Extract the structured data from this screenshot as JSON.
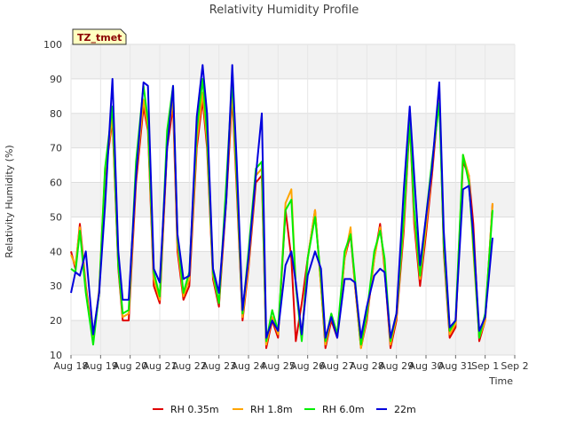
{
  "chart_data": {
    "type": "line",
    "title": "Relativity Humidity Profile",
    "xlabel": "Time",
    "ylabel": "Relativity Humidity (%)",
    "ylim": [
      10,
      100
    ],
    "yticks": [
      10,
      20,
      30,
      40,
      50,
      60,
      70,
      80,
      90,
      100
    ],
    "xlim": [
      0,
      15
    ],
    "xticks": [
      {
        "v": 0,
        "label": "Aug 18"
      },
      {
        "v": 1,
        "label": "Aug 19"
      },
      {
        "v": 2,
        "label": "Aug 20"
      },
      {
        "v": 3,
        "label": "Aug 21"
      },
      {
        "v": 4,
        "label": "Aug 22"
      },
      {
        "v": 5,
        "label": "Aug 23"
      },
      {
        "v": 6,
        "label": "Aug 24"
      },
      {
        "v": 7,
        "label": "Aug 25"
      },
      {
        "v": 8,
        "label": "Aug 26"
      },
      {
        "v": 9,
        "label": "Aug 27"
      },
      {
        "v": 10,
        "label": "Aug 28"
      },
      {
        "v": 11,
        "label": "Aug 29"
      },
      {
        "v": 12,
        "label": "Aug 30"
      },
      {
        "v": 13,
        "label": "Aug 31"
      },
      {
        "v": 14,
        "label": "Sep 1"
      },
      {
        "v": 15,
        "label": "Sep 2"
      }
    ],
    "grid": true,
    "badge": "TZ_tmet",
    "legend_position": "bottom-center",
    "x": [
      0.0,
      0.15,
      0.3,
      0.5,
      0.75,
      0.95,
      1.15,
      1.4,
      1.6,
      1.75,
      1.95,
      2.2,
      2.45,
      2.6,
      2.8,
      3.0,
      3.25,
      3.45,
      3.6,
      3.8,
      4.0,
      4.25,
      4.45,
      4.6,
      4.8,
      5.0,
      5.25,
      5.45,
      5.6,
      5.8,
      6.0,
      6.25,
      6.45,
      6.6,
      6.8,
      7.0,
      7.25,
      7.45,
      7.6,
      7.8,
      8.0,
      8.25,
      8.45,
      8.6,
      8.8,
      9.0,
      9.25,
      9.45,
      9.6,
      9.8,
      10.0,
      10.25,
      10.45,
      10.6,
      10.8,
      11.0,
      11.25,
      11.45,
      11.6,
      11.8,
      12.0,
      12.2,
      12.45,
      12.6,
      12.8,
      13.0,
      13.25,
      13.45,
      13.6,
      13.8,
      14.0,
      14.25
    ],
    "series": [
      {
        "name": "RH 0.35m",
        "color": "#e00000",
        "values": [
          40,
          35,
          48,
          30,
          14,
          28,
          62,
          78,
          35,
          20,
          20,
          60,
          82,
          75,
          30,
          25,
          70,
          82,
          40,
          26,
          30,
          70,
          84,
          70,
          32,
          24,
          55,
          85,
          58,
          20,
          35,
          60,
          62,
          12,
          20,
          15,
          52,
          38,
          14,
          25,
          38,
          52,
          30,
          12,
          20,
          15,
          38,
          45,
          30,
          12,
          20,
          38,
          48,
          35,
          12,
          20,
          46,
          78,
          48,
          30,
          45,
          62,
          86,
          40,
          15,
          18,
          66,
          62,
          48,
          14,
          20,
          54
        ]
      },
      {
        "name": "RH 1.8m",
        "color": "#ffa500",
        "values": [
          39,
          36,
          47,
          29,
          14,
          29,
          63,
          79,
          36,
          21,
          22,
          62,
          84,
          76,
          32,
          26,
          72,
          84,
          42,
          27,
          32,
          72,
          86,
          72,
          33,
          25,
          57,
          87,
          60,
          21,
          36,
          62,
          64,
          13,
          21,
          16,
          54,
          58,
          30,
          15,
          38,
          52,
          30,
          13,
          21,
          16,
          38,
          47,
          30,
          12,
          21,
          38,
          47,
          36,
          13,
          21,
          48,
          80,
          50,
          32,
          47,
          64,
          87,
          42,
          16,
          19,
          68,
          62,
          40,
          15,
          20,
          54
        ]
      },
      {
        "name": "RH 6.0m",
        "color": "#00ee00",
        "values": [
          35,
          34,
          46,
          28,
          13,
          28,
          64,
          82,
          36,
          22,
          23,
          66,
          88,
          78,
          34,
          27,
          75,
          88,
          44,
          28,
          34,
          75,
          90,
          74,
          34,
          25,
          60,
          90,
          62,
          22,
          40,
          64,
          66,
          14,
          23,
          17,
          52,
          55,
          30,
          14,
          38,
          50,
          32,
          14,
          22,
          16,
          40,
          45,
          32,
          13,
          22,
          40,
          46,
          38,
          14,
          22,
          50,
          78,
          52,
          33,
          50,
          66,
          83,
          42,
          17,
          20,
          68,
          60,
          42,
          15,
          22,
          52
        ]
      },
      {
        "name": "22m",
        "color": "#0000dd",
        "values": [
          28,
          34,
          33,
          40,
          16,
          28,
          53,
          90,
          40,
          26,
          26,
          62,
          89,
          88,
          35,
          31,
          70,
          88,
          45,
          32,
          33,
          79,
          94,
          80,
          35,
          28,
          55,
          94,
          66,
          23,
          38,
          62,
          80,
          15,
          20,
          17,
          36,
          40,
          31,
          16,
          33,
          40,
          35,
          15,
          21,
          15,
          32,
          32,
          31,
          15,
          24,
          33,
          35,
          34,
          15,
          22,
          58,
          82,
          62,
          36,
          50,
          64,
          89,
          46,
          18,
          20,
          58,
          59,
          45,
          17,
          21,
          44
        ]
      }
    ]
  }
}
